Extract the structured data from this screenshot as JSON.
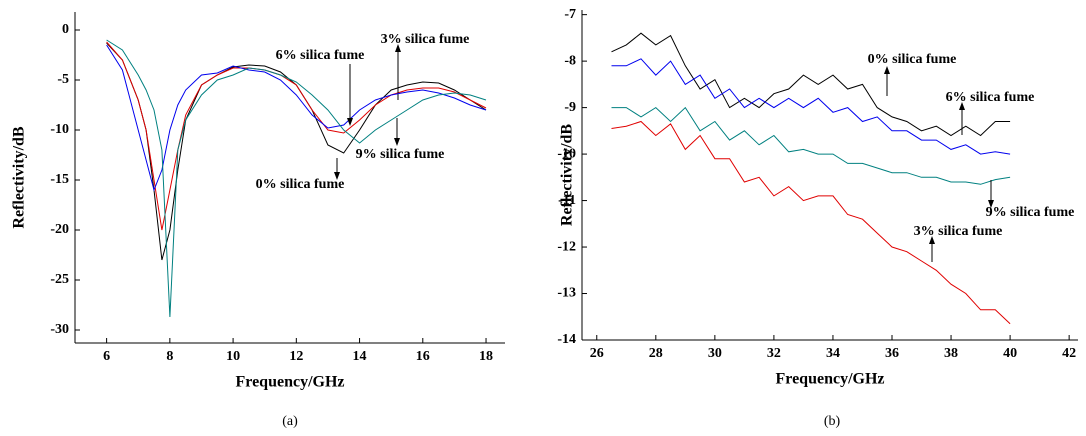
{
  "chart_data": [
    {
      "type": "line",
      "caption": "(a)",
      "x_label": "Frequency/GHz",
      "y_label": "Reflectivity/dB",
      "xlim": [
        5,
        18.6
      ],
      "ylim": [
        -31.3,
        1.8
      ],
      "xticks": [
        6,
        8,
        10,
        12,
        14,
        16,
        18
      ],
      "yticks": [
        0,
        -5,
        -10,
        -15,
        -20,
        -25,
        -30
      ],
      "x": [
        6,
        6.5,
        7,
        7.25,
        7.5,
        7.75,
        8,
        8.25,
        8.5,
        9,
        9.5,
        10,
        10.5,
        11,
        11.5,
        12,
        12.5,
        13,
        13.5,
        14,
        14.5,
        15,
        15.5,
        16,
        16.5,
        17,
        17.5,
        18
      ],
      "series": [
        {
          "name": "0% silica fume",
          "color": "#000000",
          "values": [
            -1.3,
            -3,
            -7,
            -10,
            -16,
            -23,
            -20,
            -14,
            -9,
            -5.5,
            -4.5,
            -3.7,
            -3.5,
            -3.6,
            -4.2,
            -5.5,
            -8,
            -11.5,
            -12.3,
            -10,
            -7.5,
            -6,
            -5.5,
            -5.2,
            -5.3,
            -6,
            -7,
            -8
          ]
        },
        {
          "name": "3% silica fume",
          "color": "#e00000",
          "values": [
            -1.2,
            -3,
            -7,
            -10,
            -15,
            -20,
            -16,
            -12,
            -8.5,
            -5.5,
            -4.5,
            -3.8,
            -3.8,
            -4,
            -4.5,
            -5.5,
            -8,
            -10,
            -10.3,
            -9,
            -7.5,
            -6.5,
            -6,
            -5.8,
            -5.8,
            -6.2,
            -7,
            -7.8
          ]
        },
        {
          "name": "6% silica fume",
          "color": "#0000ee",
          "values": [
            -1.5,
            -4,
            -10,
            -13,
            -16,
            -14,
            -10,
            -7.5,
            -6,
            -4.5,
            -4.3,
            -3.6,
            -4,
            -4.2,
            -5,
            -6.5,
            -8.5,
            -9.8,
            -9.5,
            -8,
            -7,
            -6.5,
            -6.2,
            -6,
            -6.3,
            -6.8,
            -7.5,
            -8
          ]
        },
        {
          "name": "9% silica fume",
          "color": "#008080",
          "values": [
            -1,
            -2,
            -4.5,
            -6,
            -8,
            -12,
            -28.7,
            -12,
            -9,
            -6.5,
            -5,
            -4.5,
            -3.8,
            -4,
            -4.5,
            -5.2,
            -6.5,
            -8,
            -10,
            -11.3,
            -10,
            -9,
            -8,
            -7,
            -6.5,
            -6.3,
            -6.5,
            -7
          ]
        }
      ]
    },
    {
      "type": "line",
      "caption": "(b)",
      "x_label": "Frequency/GHz",
      "y_label": "Reflectivity/dB",
      "xlim": [
        25.5,
        42.3
      ],
      "ylim": [
        -14,
        -6.9
      ],
      "xticks": [
        26,
        28,
        30,
        32,
        34,
        36,
        38,
        40,
        42
      ],
      "yticks": [
        -7,
        -8,
        -9,
        -10,
        -11,
        -12,
        -13,
        -14
      ],
      "x": [
        26.5,
        27,
        27.5,
        28,
        28.5,
        29,
        29.5,
        30,
        30.5,
        31,
        31.5,
        32,
        32.5,
        33,
        33.5,
        34,
        34.5,
        35,
        35.5,
        36,
        36.5,
        37,
        37.5,
        38,
        38.5,
        39,
        39.5,
        40
      ],
      "series": [
        {
          "name": "0% silica fume",
          "color": "#000000",
          "values": [
            -7.8,
            -7.65,
            -7.4,
            -7.65,
            -7.45,
            -8.1,
            -8.6,
            -8.4,
            -9.0,
            -8.8,
            -9.0,
            -8.7,
            -8.6,
            -8.3,
            -8.5,
            -8.3,
            -8.6,
            -8.5,
            -9.0,
            -9.2,
            -9.3,
            -9.5,
            -9.4,
            -9.6,
            -9.4,
            -9.6,
            -9.3,
            -9.3
          ]
        },
        {
          "name": "6% silica fume",
          "color": "#0000ee",
          "values": [
            -8.1,
            -8.1,
            -7.95,
            -8.3,
            -8.0,
            -8.5,
            -8.3,
            -8.8,
            -8.6,
            -9.0,
            -8.8,
            -9.0,
            -8.8,
            -9.0,
            -8.8,
            -9.1,
            -9.0,
            -9.3,
            -9.2,
            -9.5,
            -9.5,
            -9.7,
            -9.7,
            -9.9,
            -9.8,
            -10.0,
            -9.95,
            -10.0
          ]
        },
        {
          "name": "9% silica fume",
          "color": "#008080",
          "values": [
            -9.0,
            -9.0,
            -9.2,
            -9.0,
            -9.3,
            -9.0,
            -9.5,
            -9.3,
            -9.7,
            -9.5,
            -9.8,
            -9.6,
            -9.95,
            -9.9,
            -10.0,
            -10.0,
            -10.2,
            -10.2,
            -10.3,
            -10.4,
            -10.4,
            -10.5,
            -10.5,
            -10.6,
            -10.6,
            -10.65,
            -10.55,
            -10.5
          ]
        },
        {
          "name": "3% silica fume",
          "color": "#e00000",
          "values": [
            -9.45,
            -9.4,
            -9.3,
            -9.6,
            -9.35,
            -9.9,
            -9.6,
            -10.1,
            -10.1,
            -10.6,
            -10.5,
            -10.9,
            -10.7,
            -11.0,
            -10.9,
            -10.9,
            -11.3,
            -11.4,
            -11.7,
            -12.0,
            -12.1,
            -12.3,
            -12.5,
            -12.8,
            -13.0,
            -13.35,
            -13.35,
            -13.65
          ]
        }
      ]
    }
  ]
}
